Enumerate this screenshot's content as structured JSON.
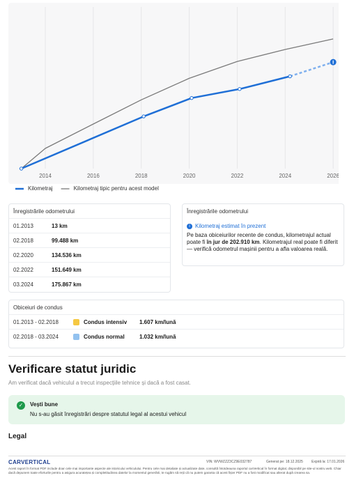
{
  "chart_data": {
    "type": "line",
    "xlim": [
      2012.75,
      2026.2
    ],
    "ylim": [
      0,
      308000
    ],
    "xticks": [
      2014,
      2016,
      2018,
      2020,
      2022,
      2024,
      2026
    ],
    "grid": true,
    "series": [
      {
        "name": "Kilometraj",
        "color": "#1f6fd6",
        "x": [
          2013.0,
          2018.1,
          2020.1,
          2022.1,
          2024.2
        ],
        "values": [
          13,
          99488,
          134536,
          151649,
          175867
        ]
      },
      {
        "name": "Kilometraj tipic pentru acest model",
        "color": "#7a7a7a",
        "x": [
          2013,
          2014,
          2016,
          2018,
          2020,
          2022,
          2024,
          2026
        ],
        "values": [
          0,
          38500,
          85000,
          131000,
          172000,
          204000,
          227000,
          247000
        ]
      }
    ],
    "estimate": {
      "color": "#7fb0ee",
      "x": [
        2024.2,
        2026.0
      ],
      "values": [
        175867,
        202910
      ]
    },
    "legend": "bottom-left"
  },
  "odometer": {
    "title": "Înregistrările odometrului",
    "rows": [
      [
        "01.2013",
        "13 km"
      ],
      [
        "02.2018",
        "99.488 km"
      ],
      [
        "02.2020",
        "134.536 km"
      ],
      [
        "02.2022",
        "151.649 km"
      ],
      [
        "03.2024",
        "175.867 km"
      ]
    ]
  },
  "estimate_card": {
    "title": "Înregistrările odometrului",
    "link": "Kilometraj estimat în prezent",
    "text_before": "Pe baza obiceiurilor recente de condus, kilometrajul actual poate fi ",
    "text_bold": "în jur de 202.910 km",
    "text_after": ". Kilometrajul real poate fi diferit — verifică odometrul mașinii pentru a afla valoarea reală."
  },
  "conditions": {
    "title": "Obiceiuri de condus",
    "rows": [
      [
        "01.2013 - 02.2018",
        "Condus intensiv",
        "1.607 km/lună"
      ],
      [
        "02.2018 - 03.2024",
        "Condus normal",
        "1.032 km/lună"
      ]
    ]
  },
  "legal_check": {
    "title": "Verificare statut juridic",
    "subtitle": "Am verificat dacă vehiculul a trecut inspecțiile tehnice și dacă a fost casat.",
    "box_title": "Vești bune",
    "box_text": "Nu s-au găsit înregistrări despre statutul legal al acestui vehicul"
  },
  "legal": "Legal",
  "footer": {
    "logo": "CARVERTICAL",
    "vin": "VIN: WVWZZZ3CZ9E032787",
    "generated": "Generat pe: 18.12.2025",
    "expires": "Expiră la: 17.01.2026",
    "disclaimer": "Acest raport în format PDF include doar cele mai importante aspecte ale istoricului vehiculului. Pentru cele mai detaliate și actualizate date, consultă întotdeauna raportul carVertical în format digital, disponibil pe site-ul nostru web. Chiar dacă depunem toate eforturile pentru a asigura acuratețea și completitudinea datelor la momentul generării, te rugăm să reții că nu putem garanta că acest fișier PDF nu a fost modificat sau alterat după crearea sa."
  }
}
